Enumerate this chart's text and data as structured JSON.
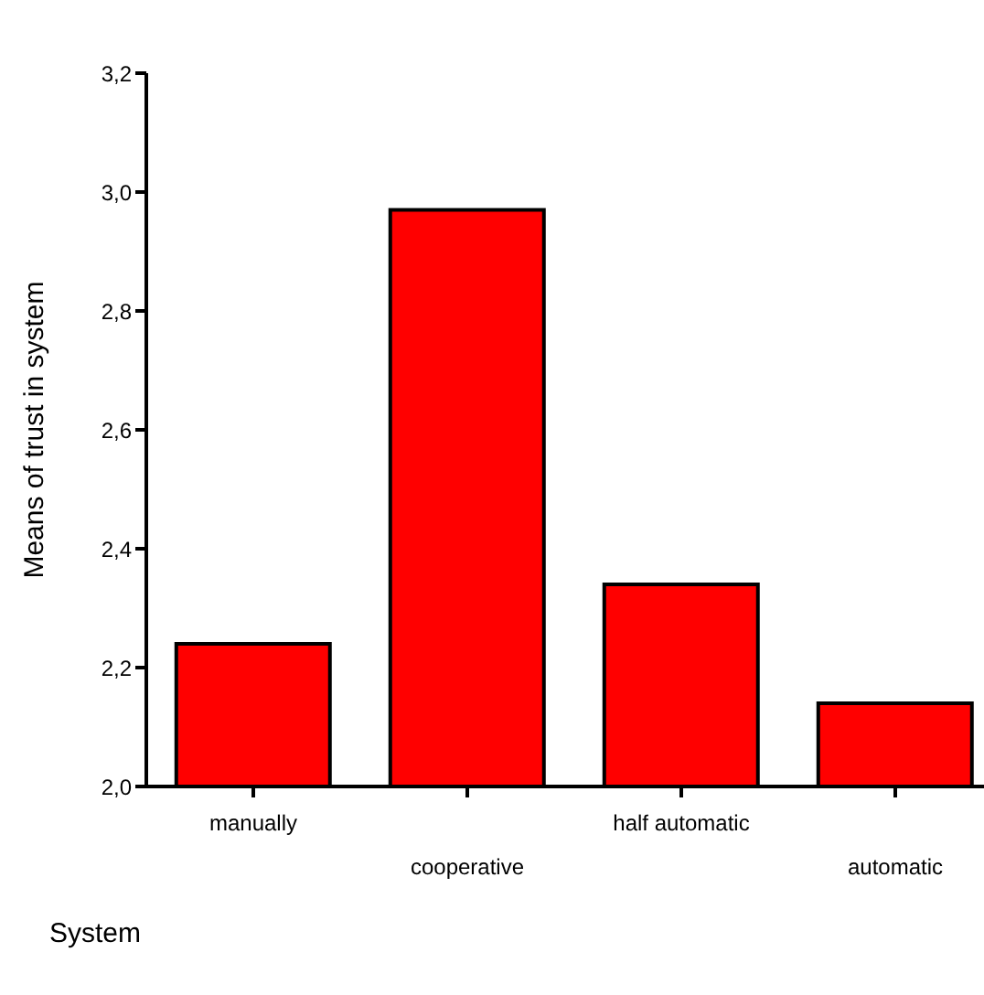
{
  "chart_data": {
    "type": "bar",
    "xlabel": "System",
    "ylabel": "Means of trust in system",
    "categories": [
      "manually",
      "cooperative",
      "half automatic",
      "automatic"
    ],
    "values": [
      2.24,
      2.97,
      2.34,
      2.14
    ],
    "color": "#ff0000",
    "ylim": [
      2.0,
      3.2
    ],
    "yticks": [
      {
        "value": 2.0,
        "label": "2,0"
      },
      {
        "value": 2.2,
        "label": "2,2"
      },
      {
        "value": 2.4,
        "label": "2,4"
      },
      {
        "value": 2.6,
        "label": "2,6"
      },
      {
        "value": 2.8,
        "label": "2,8"
      },
      {
        "value": 3.0,
        "label": "3,0"
      },
      {
        "value": 3.2,
        "label": "3,2"
      }
    ],
    "grid": false,
    "legend": false
  }
}
